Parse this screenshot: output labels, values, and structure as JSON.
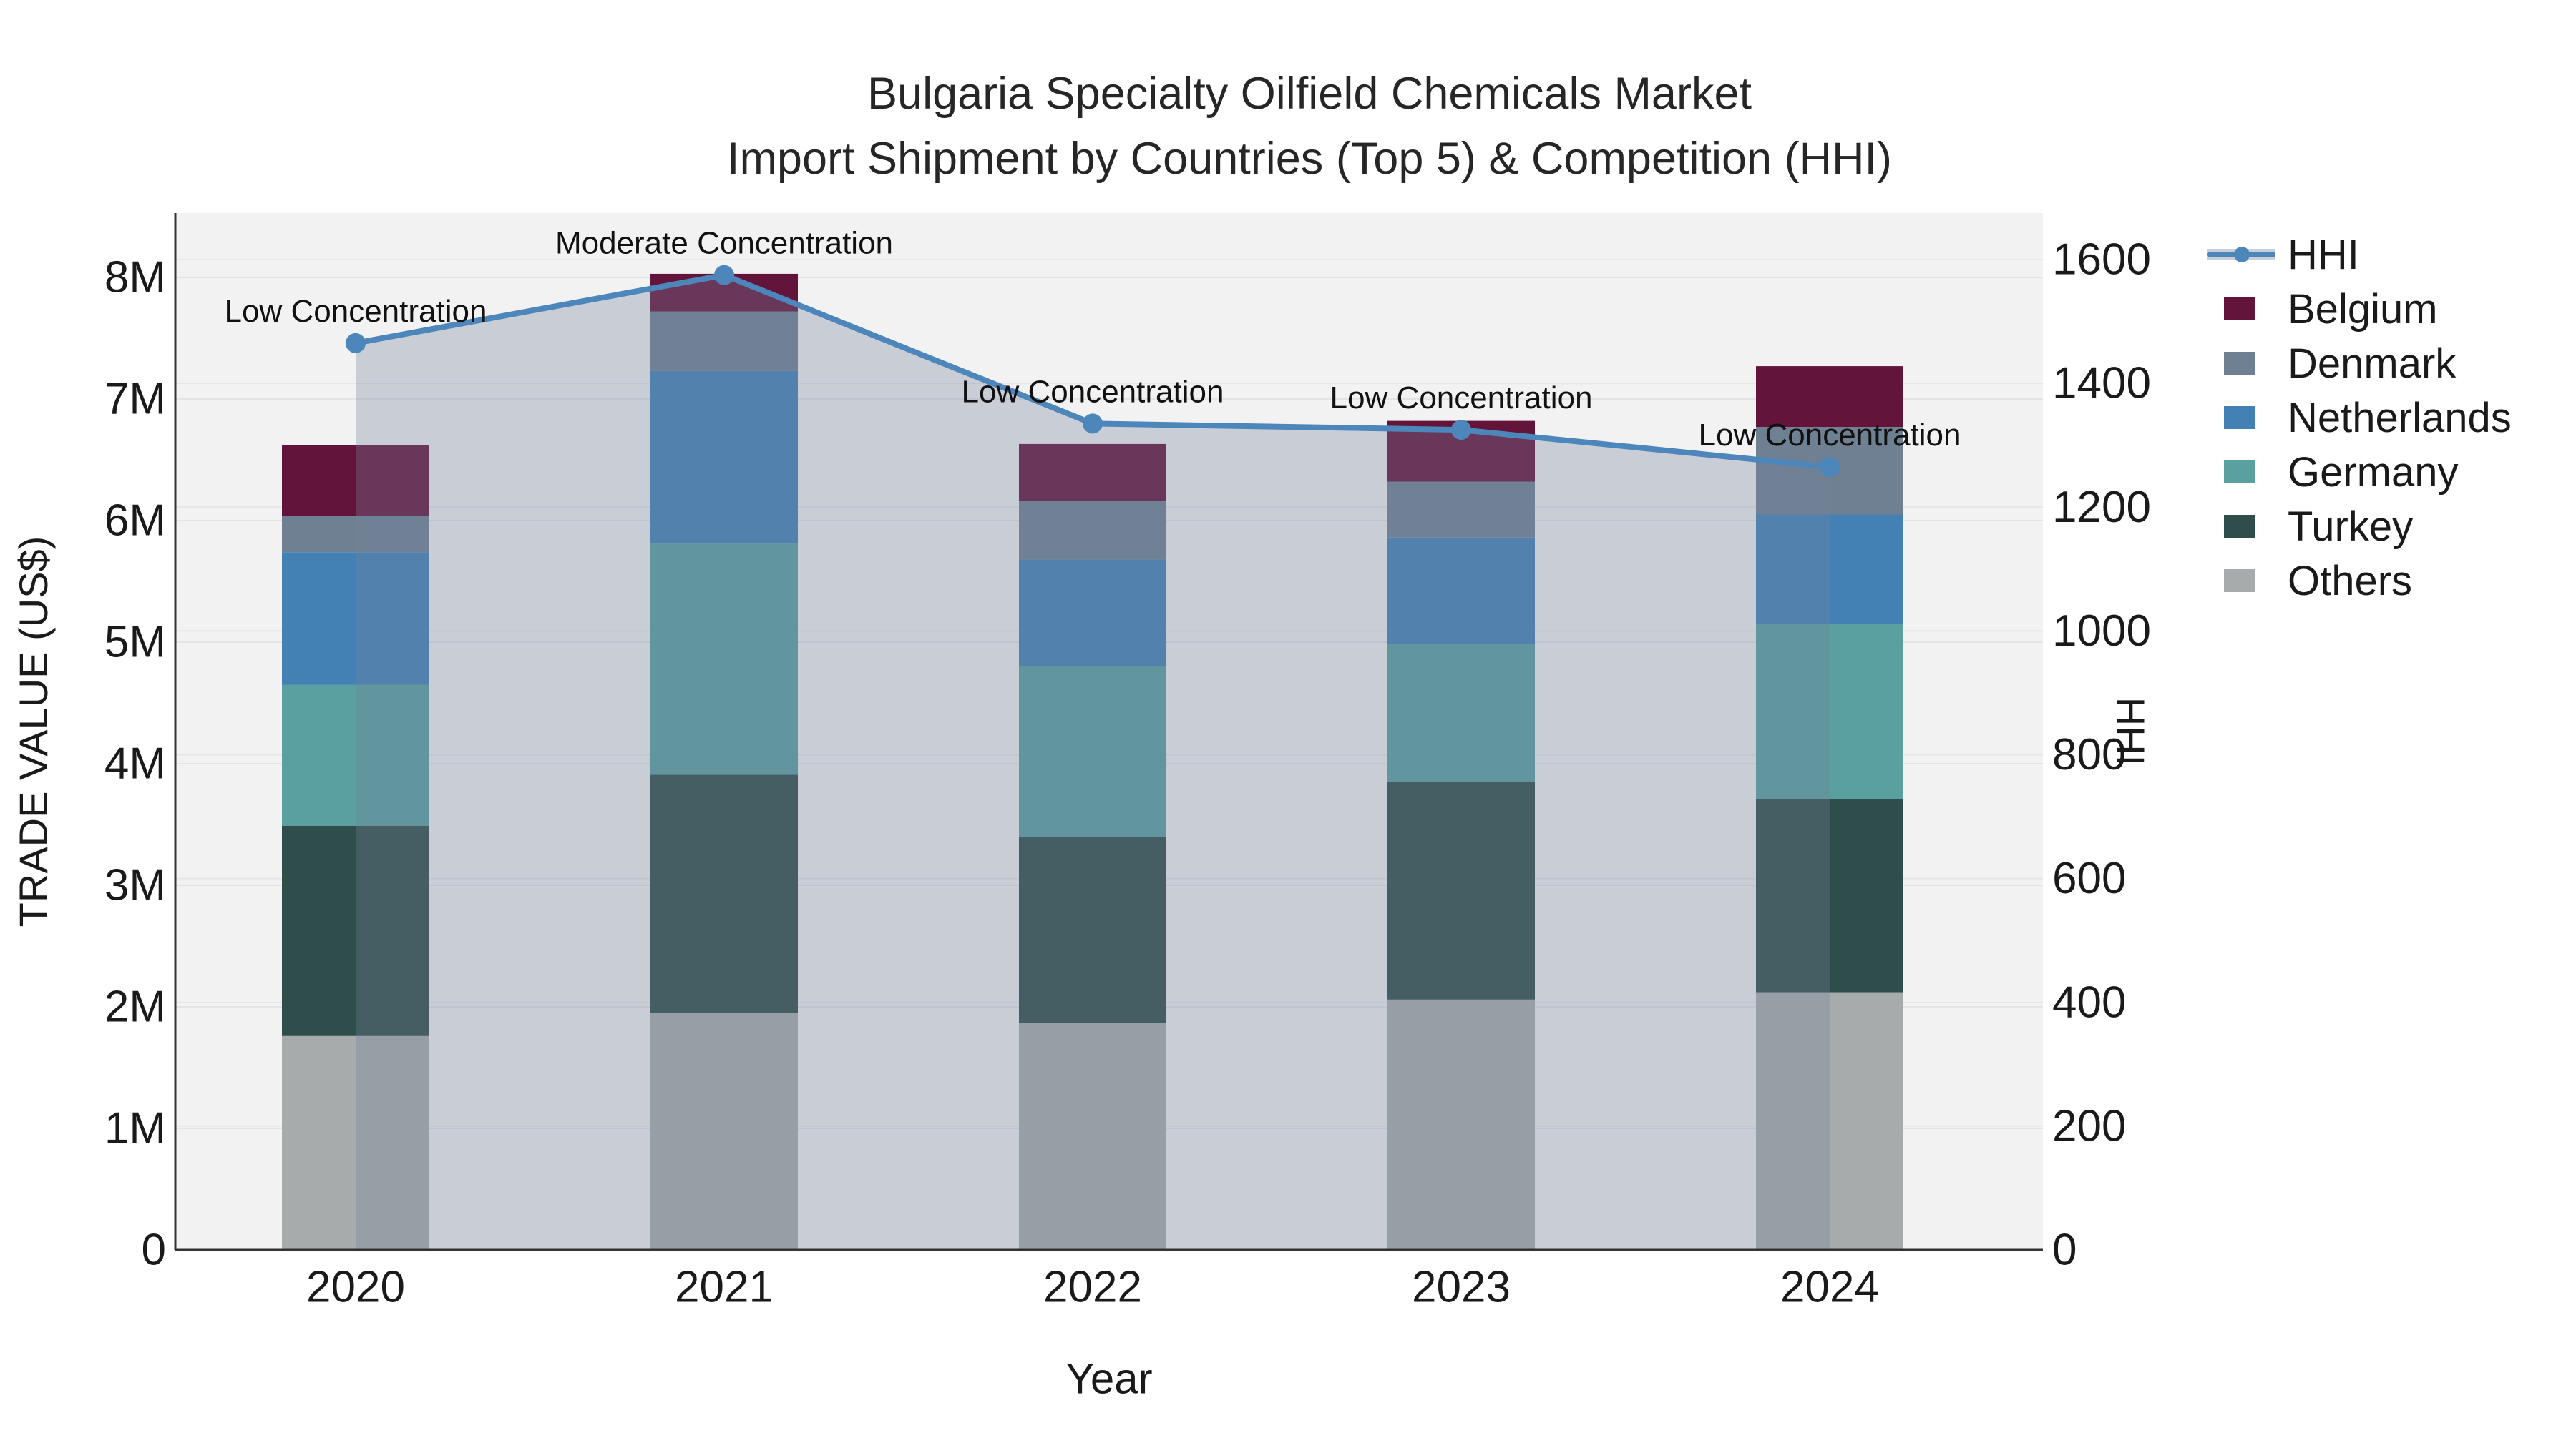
{
  "chart_data": {
    "type": "bar",
    "subtype": "stacked-bars-with-line-area-overlay",
    "title_line1": "Bulgaria Specialty Oilfield Chemicals Market",
    "title_line2": "Import Shipment by Countries (Top 5) & Competition (HHI)",
    "xlabel": "Year",
    "ylabel_left": "TRADE VALUE (US$)",
    "ylabel_right": "HHI",
    "categories": [
      "2020",
      "2021",
      "2022",
      "2023",
      "2024"
    ],
    "unit": "million US$",
    "series": [
      {
        "name": "Others",
        "color": "#a7abab",
        "values_musd": [
          1.76,
          1.95,
          1.87,
          2.06,
          2.12
        ]
      },
      {
        "name": "Turkey",
        "color": "#2e4d4b",
        "values_musd": [
          1.73,
          1.96,
          1.53,
          1.79,
          1.59
        ]
      },
      {
        "name": "Germany",
        "color": "#5ba0a0",
        "values_musd": [
          1.16,
          1.9,
          1.4,
          1.13,
          1.44
        ]
      },
      {
        "name": "Netherlands",
        "color": "#4381b5",
        "values_musd": [
          1.09,
          1.42,
          0.88,
          0.88,
          0.9
        ]
      },
      {
        "name": "Denmark",
        "color": "#6f8093",
        "values_musd": [
          0.3,
          0.49,
          0.48,
          0.46,
          0.72
        ]
      },
      {
        "name": "Belgium",
        "color": "#63143a",
        "values_musd": [
          0.58,
          0.31,
          0.47,
          0.5,
          0.5
        ]
      }
    ],
    "bar_totals_musd": [
      6.62,
      8.03,
      6.63,
      6.82,
      7.27
    ],
    "hhi": {
      "name": "HHI",
      "color": "#4d86ba",
      "area_fill_color": "rgba(115,130,155,0.32)",
      "values": [
        1465,
        1575,
        1335,
        1325,
        1265
      ]
    },
    "annotations": [
      "Low Concentration",
      "Moderate Concentration",
      "Low Concentration",
      "Low Concentration",
      "Low Concentration"
    ],
    "left_tick_values": [
      0,
      1,
      2,
      3,
      4,
      5,
      6,
      7,
      8
    ],
    "left_tick_labels": [
      "0",
      "1M",
      "2M",
      "3M",
      "4M",
      "5M",
      "6M",
      "7M",
      "8M"
    ],
    "right_tick_values": [
      0,
      200,
      400,
      600,
      800,
      1000,
      1200,
      1400,
      1600
    ],
    "right_tick_labels": [
      "0",
      "200",
      "400",
      "600",
      "800",
      "1000",
      "1200",
      "1400",
      "1600"
    ],
    "legend_items": [
      "HHI",
      "Belgium",
      "Denmark",
      "Netherlands",
      "Germany",
      "Turkey",
      "Others"
    ],
    "legend_position": "right",
    "grid": "on",
    "plot_bg_color": "#f2f2f2",
    "grid_color": "#e2e4e6",
    "spine_color": "#333333",
    "text_color": "#1a1a1a",
    "ylim_left_musd": [
      0,
      8.5
    ],
    "ylim_right_hhi": [
      0,
      1675
    ]
  }
}
